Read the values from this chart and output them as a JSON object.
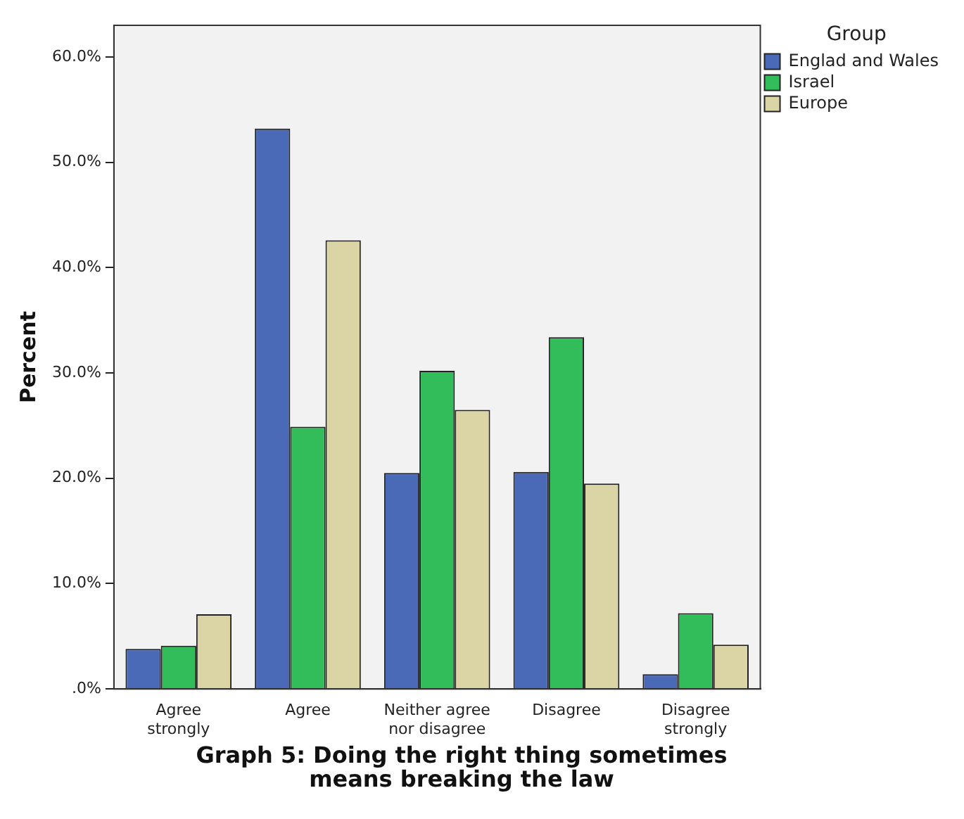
{
  "chart_data": {
    "type": "bar",
    "title": "Graph 5: Doing the right thing sometimes means breaking the law",
    "ylabel": "Percent",
    "legend_title": "Group",
    "legend": "top right",
    "grid": false,
    "categories": [
      "Agree strongly",
      "Agree",
      "Neither agree nor disagree",
      "Disagree",
      "Disagree strongly"
    ],
    "series": [
      {
        "name": "Englad and Wales",
        "color": "#4a6ab8",
        "values": [
          3.8,
          53.2,
          20.5,
          20.6,
          1.4
        ]
      },
      {
        "name": "Israel",
        "color": "#33bd5a",
        "values": [
          4.1,
          24.9,
          30.2,
          33.4,
          7.2
        ]
      },
      {
        "name": "Europe",
        "color": "#dbd5a6",
        "values": [
          7.1,
          42.6,
          26.5,
          19.5,
          4.2
        ]
      }
    ],
    "ylim": [
      0,
      63
    ],
    "yticks": [
      {
        "value": 0,
        "label": ".0%"
      },
      {
        "value": 10,
        "label": "10.0%"
      },
      {
        "value": 20,
        "label": "20.0%"
      },
      {
        "value": 30,
        "label": "30.0%"
      },
      {
        "value": 40,
        "label": "40.0%"
      },
      {
        "value": 50,
        "label": "50.0%"
      },
      {
        "value": 60,
        "label": "60.0%"
      }
    ]
  }
}
